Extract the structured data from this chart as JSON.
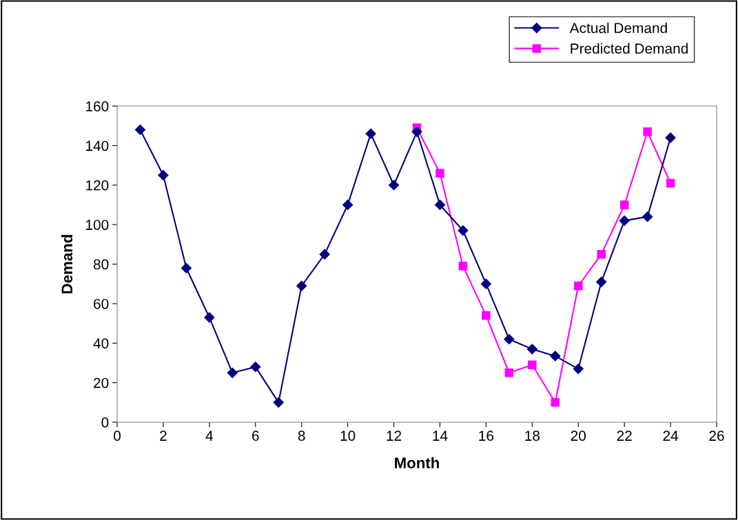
{
  "chart_data": {
    "type": "line",
    "xlabel": "Month",
    "ylabel": "Demand",
    "xlim": [
      0,
      26
    ],
    "xticks": [
      0,
      2,
      4,
      6,
      8,
      10,
      12,
      14,
      16,
      18,
      20,
      22,
      24,
      26
    ],
    "ylim": [
      0,
      160
    ],
    "yticks": [
      0,
      20,
      40,
      60,
      80,
      100,
      120,
      140,
      160
    ],
    "grid": false,
    "legend": "top right",
    "series": [
      {
        "name": "Actual Demand",
        "color": "#000080",
        "marker": "diamond",
        "x": [
          1,
          2,
          3,
          4,
          5,
          6,
          7,
          8,
          9,
          10,
          11,
          12,
          13,
          14,
          15,
          16,
          17,
          18,
          19,
          20,
          21,
          22,
          23,
          24
        ],
        "values": [
          148,
          125,
          78,
          53,
          25,
          28,
          10,
          69,
          85,
          110,
          146,
          120,
          147,
          110,
          97,
          70,
          42,
          37,
          33.5,
          27,
          71,
          102,
          104,
          144
        ]
      },
      {
        "name": "Predicted Demand",
        "color": "#ff00ff",
        "marker": "square",
        "x": [
          13,
          14,
          15,
          16,
          17,
          18,
          19,
          20,
          21,
          22,
          23,
          24
        ],
        "values": [
          149,
          126,
          79,
          54,
          25,
          29,
          10,
          69,
          85,
          110,
          147,
          121
        ]
      }
    ]
  }
}
